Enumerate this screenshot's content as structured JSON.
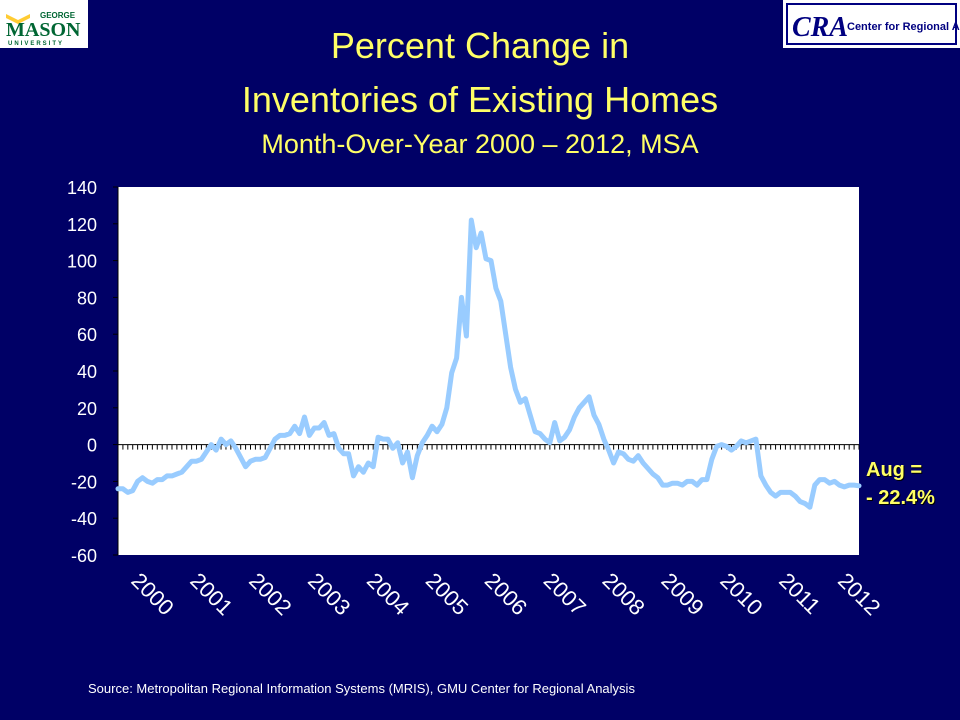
{
  "logos": {
    "left": {
      "small_text": "GEORGE",
      "name": "MASON",
      "sub": "UNIVERSITY",
      "color": "#006633",
      "accent": "#ffcc33"
    },
    "right": {
      "mark": "CRA",
      "name": "Center for Regional Analysis",
      "color": "#000080"
    }
  },
  "title": {
    "line1": "Percent Change in",
    "line2": "Inventories of Existing Homes",
    "line3": "Month-Over-Year 2000 – 2012, MSA"
  },
  "annotation": {
    "line1": "Aug =",
    "line2": "- 22.4%"
  },
  "source": "Source: Metropolitan Regional Information Systems (MRIS), GMU Center for Regional Analysis",
  "chart_data": {
    "type": "line",
    "ylim": [
      -60,
      140
    ],
    "yticks": [
      140,
      120,
      100,
      80,
      60,
      40,
      20,
      0,
      -20,
      -40,
      -60
    ],
    "xticks": [
      "2000",
      "2001",
      "2002",
      "2003",
      "2004",
      "2005",
      "2006",
      "2007",
      "2008",
      "2009",
      "2010",
      "2011",
      "2012"
    ],
    "grid": false,
    "line_color": "#99ccff",
    "series": [
      {
        "values": [
          -24,
          -24,
          -26,
          -25,
          -20,
          -18,
          -20,
          -21,
          -19,
          -19,
          -17,
          -17,
          -16,
          -15,
          -12,
          -9,
          -9,
          -8,
          -4,
          0,
          -3,
          3,
          0,
          2,
          -2,
          -7,
          -12,
          -9,
          -8,
          -8,
          -7,
          -2,
          3,
          5,
          5,
          6,
          10,
          6,
          15,
          5,
          9,
          9,
          12,
          5,
          6,
          -2,
          -5,
          -5,
          -17,
          -12,
          -15,
          -10,
          -12,
          4,
          3,
          3,
          -2,
          1,
          -10,
          -4,
          -18,
          -6,
          1,
          5,
          10,
          7,
          11,
          20,
          39,
          47,
          80,
          59,
          122,
          107,
          115,
          101,
          100,
          85,
          78,
          60,
          42,
          30,
          23,
          25,
          16,
          7,
          6,
          3,
          1,
          12,
          2,
          4,
          8,
          15,
          20,
          23,
          26,
          16,
          11,
          3,
          -3,
          -10,
          -4,
          -5,
          -8,
          -9,
          -6,
          -10,
          -13,
          -16,
          -18,
          -22,
          -22,
          -21,
          -21,
          -22,
          -20,
          -20,
          -22,
          -19,
          -19,
          -8,
          -1,
          0,
          -1,
          -3,
          -1,
          2,
          1,
          2,
          3,
          -17,
          -22,
          -26,
          -28,
          -26,
          -26,
          -26,
          -28,
          -31,
          -32,
          -34,
          -22,
          -19,
          -19,
          -21,
          -20,
          -22,
          -23,
          -22,
          -22,
          -22.4
        ]
      }
    ]
  }
}
